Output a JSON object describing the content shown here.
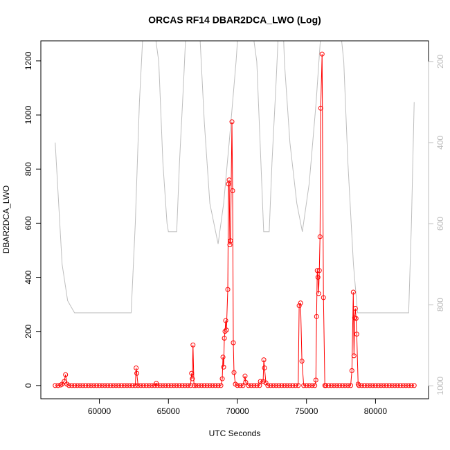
{
  "chart_data": {
    "type": "line",
    "title": "ORCAS RF14 DBAR2DCA_LWO (Log)",
    "x_label": "UTC Seconds",
    "y_label": "DBAR2DCA_LWO",
    "xlim": [
      55760,
      83840
    ],
    "xticks": [
      60000,
      65000,
      70000,
      75000,
      80000
    ],
    "ylim": [
      -49,
      1274
    ],
    "yticks": [
      0,
      200,
      400,
      600,
      800,
      1000,
      1200
    ],
    "y2lim": [
      1032,
      149
    ],
    "y2ticks": [
      200,
      400,
      600,
      800,
      1000
    ],
    "series": [
      {
        "color": "#ff0000",
        "marker": "circle",
        "axis": "y",
        "x": [
          56800,
          57000,
          57200,
          57300,
          57450,
          57550,
          57650,
          57800,
          58000,
          58200,
          58400,
          58600,
          58800,
          59000,
          59200,
          59400,
          59600,
          59800,
          60000,
          60200,
          60400,
          60600,
          60800,
          61000,
          61200,
          61400,
          61600,
          61800,
          62000,
          62200,
          62400,
          62600,
          62660,
          62710,
          62800,
          63000,
          63200,
          63400,
          63600,
          63800,
          64000,
          64120,
          64200,
          64400,
          64600,
          64800,
          65000,
          65200,
          65400,
          65600,
          65800,
          66000,
          66200,
          66400,
          66600,
          66680,
          66730,
          66780,
          66850,
          67000,
          67200,
          67400,
          67600,
          67800,
          68000,
          68200,
          68400,
          68600,
          68800,
          68900,
          68950,
          69000,
          69050,
          69100,
          69150,
          69200,
          69300,
          69350,
          69400,
          69450,
          69500,
          69600,
          69650,
          69700,
          69750,
          69850,
          70000,
          70200,
          70400,
          70550,
          70600,
          70800,
          71000,
          71200,
          71400,
          71600,
          71660,
          71860,
          71910,
          71960,
          72060,
          72200,
          72400,
          72600,
          72800,
          73000,
          73200,
          73400,
          73600,
          73800,
          74000,
          74200,
          74400,
          74470,
          74570,
          74670,
          74800,
          75000,
          75200,
          75400,
          75600,
          75680,
          75730,
          75780,
          75830,
          75880,
          75930,
          75980,
          76030,
          76130,
          76230,
          76330,
          76400,
          76600,
          76800,
          77000,
          77200,
          77400,
          77600,
          77800,
          78000,
          78200,
          78290,
          78390,
          78440,
          78490,
          78540,
          78590,
          78640,
          78740,
          78800,
          79000,
          79200,
          79400,
          79600,
          79800,
          80000,
          80200,
          80400,
          80600,
          80800,
          81000,
          81200,
          81400,
          81600,
          81800,
          82000,
          82200,
          82400,
          82600,
          82800
        ],
        "values": [
          0,
          0,
          2,
          5,
          15,
          40,
          5,
          0,
          0,
          0,
          0,
          0,
          0,
          0,
          0,
          0,
          0,
          0,
          0,
          0,
          0,
          0,
          0,
          0,
          0,
          0,
          0,
          0,
          0,
          0,
          0,
          0,
          65,
          45,
          0,
          0,
          0,
          0,
          0,
          0,
          0,
          8,
          0,
          0,
          0,
          0,
          0,
          0,
          0,
          0,
          0,
          0,
          0,
          0,
          0,
          45,
          25,
          150,
          0,
          0,
          0,
          0,
          0,
          0,
          0,
          0,
          0,
          0,
          0,
          25,
          105,
          68,
          175,
          200,
          240,
          205,
          355,
          745,
          760,
          520,
          535,
          975,
          720,
          158,
          48,
          5,
          0,
          0,
          0,
          35,
          12,
          0,
          0,
          0,
          0,
          0,
          15,
          15,
          95,
          65,
          10,
          0,
          0,
          0,
          0,
          0,
          0,
          0,
          0,
          0,
          0,
          0,
          0,
          295,
          305,
          90,
          0,
          0,
          0,
          0,
          0,
          20,
          255,
          425,
          400,
          340,
          425,
          550,
          1025,
          1225,
          325,
          0,
          0,
          0,
          0,
          0,
          0,
          0,
          0,
          0,
          0,
          0,
          55,
          345,
          110,
          250,
          285,
          248,
          190,
          5,
          0,
          0,
          0,
          0,
          0,
          0,
          0,
          0,
          0,
          0,
          0,
          0,
          0,
          0,
          0,
          0,
          0,
          0,
          0,
          0,
          0
        ]
      },
      {
        "color": "#bebebe",
        "axis": "y2",
        "x": [
          56800,
          57000,
          57300,
          57700,
          58200,
          62300,
          62600,
          62900,
          63200,
          63900,
          64300,
          64600,
          64900,
          65000,
          65600,
          65800,
          66100,
          66300,
          67000,
          67300,
          67600,
          68000,
          68600,
          69000,
          69400,
          69900,
          70100,
          71000,
          71400,
          71700,
          71900,
          72300,
          72500,
          72800,
          73000,
          73300,
          73400,
          73800,
          74300,
          74700,
          75200,
          75700,
          76100,
          77400,
          77700,
          78000,
          78400,
          78700,
          82400,
          82600,
          82800
        ],
        "values": [
          400,
          520,
          700,
          790,
          820,
          820,
          600,
          300,
          100,
          100,
          200,
          450,
          600,
          620,
          620,
          450,
          250,
          100,
          100,
          150,
          350,
          550,
          650,
          550,
          400,
          200,
          100,
          100,
          200,
          450,
          620,
          620,
          450,
          250,
          100,
          100,
          200,
          400,
          550,
          620,
          500,
          300,
          100,
          100,
          200,
          450,
          700,
          820,
          820,
          600,
          300
        ]
      }
    ]
  }
}
